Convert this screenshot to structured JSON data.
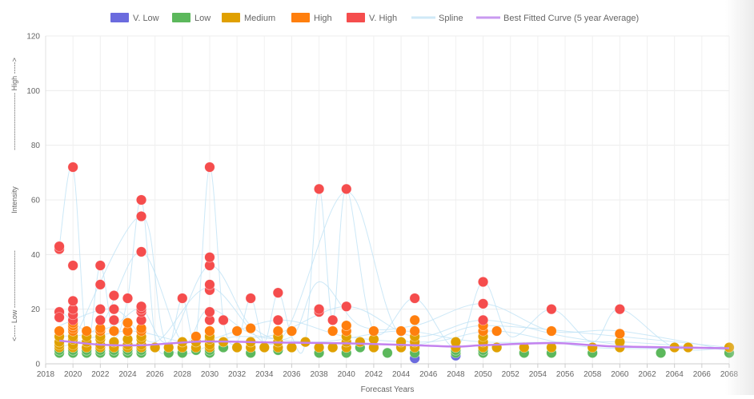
{
  "chart_data": {
    "type": "scatter",
    "xlabel": "Forecast Years",
    "ylabel": "<----- Low ------------------------ Intensity ------------------------ High ----->",
    "ylabel_parts": {
      "low": "<----- Low ------------------------",
      "mid": "Intensity",
      "high": "------------------------ High ----->"
    },
    "xlim": [
      2018,
      2068
    ],
    "ylim": [
      0,
      120
    ],
    "x_ticks": [
      2018,
      2020,
      2022,
      2024,
      2026,
      2028,
      2030,
      2032,
      2034,
      2036,
      2038,
      2040,
      2042,
      2044,
      2046,
      2048,
      2050,
      2052,
      2054,
      2056,
      2058,
      2060,
      2062,
      2064,
      2066,
      2068
    ],
    "y_ticks": [
      0,
      20,
      40,
      60,
      80,
      100,
      120
    ],
    "grid": true,
    "legend_position": "top-center",
    "legend": [
      {
        "label": "V. Low",
        "color": "#6b6bde",
        "kind": "box"
      },
      {
        "label": "Low",
        "color": "#5cb85c",
        "kind": "box"
      },
      {
        "label": "Medium",
        "color": "#e0a000",
        "kind": "box"
      },
      {
        "label": "High",
        "color": "#ff7f0e",
        "kind": "box"
      },
      {
        "label": "V. High",
        "color": "#f54d4d",
        "kind": "box"
      },
      {
        "label": "Spline",
        "color": "#cfe9f7",
        "kind": "line"
      },
      {
        "label": "Best Fitted Curve (5 year Average)",
        "color": "#c99af0",
        "kind": "line"
      }
    ],
    "series": [
      {
        "name": "V. Low",
        "color": "#6b6bde",
        "points": [
          [
            2045,
            2
          ],
          [
            2048,
            3
          ]
        ]
      },
      {
        "name": "Low",
        "color": "#5cb85c",
        "points": [
          [
            2019,
            4
          ],
          [
            2019,
            5
          ],
          [
            2020,
            4
          ],
          [
            2020,
            5
          ],
          [
            2021,
            4
          ],
          [
            2021,
            5
          ],
          [
            2022,
            4
          ],
          [
            2022,
            5
          ],
          [
            2023,
            4
          ],
          [
            2023,
            5
          ],
          [
            2024,
            4
          ],
          [
            2024,
            5
          ],
          [
            2025,
            4
          ],
          [
            2025,
            5
          ],
          [
            2026,
            6
          ],
          [
            2027,
            4
          ],
          [
            2028,
            4
          ],
          [
            2029,
            5
          ],
          [
            2030,
            4
          ],
          [
            2030,
            5
          ],
          [
            2031,
            6
          ],
          [
            2032,
            6
          ],
          [
            2033,
            4
          ],
          [
            2034,
            6
          ],
          [
            2035,
            5
          ],
          [
            2036,
            6
          ],
          [
            2038,
            4
          ],
          [
            2039,
            6
          ],
          [
            2040,
            4
          ],
          [
            2041,
            6
          ],
          [
            2042,
            6
          ],
          [
            2043,
            4
          ],
          [
            2044,
            6
          ],
          [
            2045,
            4
          ],
          [
            2048,
            4
          ],
          [
            2048,
            5
          ],
          [
            2050,
            4
          ],
          [
            2050,
            5
          ],
          [
            2051,
            6
          ],
          [
            2053,
            4
          ],
          [
            2055,
            4
          ],
          [
            2058,
            4
          ],
          [
            2063,
            4
          ],
          [
            2068,
            4
          ]
        ]
      },
      {
        "name": "Medium",
        "color": "#e0a000",
        "points": [
          [
            2019,
            6
          ],
          [
            2019,
            7
          ],
          [
            2019,
            8
          ],
          [
            2019,
            10
          ],
          [
            2020,
            6
          ],
          [
            2020,
            7
          ],
          [
            2020,
            9
          ],
          [
            2020,
            10
          ],
          [
            2021,
            6
          ],
          [
            2021,
            8
          ],
          [
            2021,
            10
          ],
          [
            2022,
            6
          ],
          [
            2022,
            7
          ],
          [
            2022,
            9
          ],
          [
            2022,
            10
          ],
          [
            2023,
            6
          ],
          [
            2023,
            8
          ],
          [
            2024,
            6
          ],
          [
            2024,
            7
          ],
          [
            2024,
            9
          ],
          [
            2025,
            6
          ],
          [
            2025,
            7
          ],
          [
            2025,
            9
          ],
          [
            2025,
            10
          ],
          [
            2026,
            6
          ],
          [
            2027,
            6
          ],
          [
            2028,
            6
          ],
          [
            2028,
            8
          ],
          [
            2029,
            6
          ],
          [
            2029,
            8
          ],
          [
            2029,
            10
          ],
          [
            2030,
            6
          ],
          [
            2030,
            7
          ],
          [
            2030,
            9
          ],
          [
            2030,
            10
          ],
          [
            2031,
            8
          ],
          [
            2032,
            6
          ],
          [
            2033,
            6
          ],
          [
            2033,
            8
          ],
          [
            2034,
            6
          ],
          [
            2035,
            6
          ],
          [
            2035,
            8
          ],
          [
            2035,
            10
          ],
          [
            2036,
            6
          ],
          [
            2037,
            8
          ],
          [
            2038,
            6
          ],
          [
            2039,
            6
          ],
          [
            2040,
            6
          ],
          [
            2040,
            8
          ],
          [
            2040,
            10
          ],
          [
            2041,
            8
          ],
          [
            2042,
            6
          ],
          [
            2042,
            9
          ],
          [
            2044,
            6
          ],
          [
            2044,
            8
          ],
          [
            2045,
            6
          ],
          [
            2045,
            8
          ],
          [
            2045,
            10
          ],
          [
            2048,
            6
          ],
          [
            2048,
            8
          ],
          [
            2050,
            6
          ],
          [
            2050,
            8
          ],
          [
            2050,
            10
          ],
          [
            2051,
            6
          ],
          [
            2053,
            6
          ],
          [
            2055,
            6
          ],
          [
            2058,
            6
          ],
          [
            2060,
            6
          ],
          [
            2060,
            8
          ],
          [
            2064,
            6
          ],
          [
            2065,
            6
          ],
          [
            2068,
            6
          ]
        ]
      },
      {
        "name": "High",
        "color": "#ff7f0e",
        "points": [
          [
            2019,
            12
          ],
          [
            2020,
            12
          ],
          [
            2020,
            13
          ],
          [
            2020,
            14
          ],
          [
            2020,
            15
          ],
          [
            2021,
            12
          ],
          [
            2022,
            12
          ],
          [
            2022,
            13
          ],
          [
            2023,
            12
          ],
          [
            2024,
            12
          ],
          [
            2024,
            15
          ],
          [
            2025,
            12
          ],
          [
            2025,
            13
          ],
          [
            2029,
            10
          ],
          [
            2030,
            12
          ],
          [
            2032,
            12
          ],
          [
            2033,
            13
          ],
          [
            2035,
            12
          ],
          [
            2036,
            12
          ],
          [
            2039,
            12
          ],
          [
            2040,
            12
          ],
          [
            2040,
            14
          ],
          [
            2042,
            12
          ],
          [
            2044,
            12
          ],
          [
            2045,
            12
          ],
          [
            2045,
            16
          ],
          [
            2050,
            12
          ],
          [
            2050,
            14
          ],
          [
            2051,
            12
          ],
          [
            2055,
            12
          ],
          [
            2060,
            11
          ]
        ]
      },
      {
        "name": "V. High",
        "color": "#f54d4d",
        "points": [
          [
            2019,
            19
          ],
          [
            2019,
            17
          ],
          [
            2019,
            42
          ],
          [
            2019,
            43
          ],
          [
            2020,
            16
          ],
          [
            2020,
            18
          ],
          [
            2020,
            20
          ],
          [
            2020,
            23
          ],
          [
            2020,
            36
          ],
          [
            2020,
            72
          ],
          [
            2022,
            16
          ],
          [
            2022,
            20
          ],
          [
            2022,
            29
          ],
          [
            2022,
            36
          ],
          [
            2023,
            16
          ],
          [
            2023,
            20
          ],
          [
            2023,
            25
          ],
          [
            2024,
            24
          ],
          [
            2025,
            16
          ],
          [
            2025,
            19
          ],
          [
            2025,
            20
          ],
          [
            2025,
            21
          ],
          [
            2025,
            41
          ],
          [
            2025,
            54
          ],
          [
            2025,
            60
          ],
          [
            2028,
            24
          ],
          [
            2030,
            16
          ],
          [
            2030,
            19
          ],
          [
            2030,
            27
          ],
          [
            2030,
            29
          ],
          [
            2030,
            36
          ],
          [
            2030,
            39
          ],
          [
            2030,
            72
          ],
          [
            2031,
            16
          ],
          [
            2033,
            24
          ],
          [
            2035,
            16
          ],
          [
            2035,
            26
          ],
          [
            2038,
            19
          ],
          [
            2038,
            20
          ],
          [
            2038,
            64
          ],
          [
            2039,
            16
          ],
          [
            2040,
            21
          ],
          [
            2040,
            64
          ],
          [
            2045,
            24
          ],
          [
            2050,
            16
          ],
          [
            2050,
            22
          ],
          [
            2050,
            30
          ],
          [
            2055,
            20
          ],
          [
            2060,
            20
          ]
        ]
      }
    ],
    "spline_segments": [
      [
        [
          2019,
          43
        ],
        [
          2020,
          72
        ],
        [
          2021,
          8
        ],
        [
          2022,
          36
        ],
        [
          2023,
          10
        ],
        [
          2024,
          24
        ],
        [
          2025,
          60
        ],
        [
          2026,
          10
        ],
        [
          2027,
          6
        ],
        [
          2028,
          24
        ],
        [
          2029,
          10
        ],
        [
          2030,
          72
        ],
        [
          2031,
          16
        ],
        [
          2032,
          8
        ],
        [
          2033,
          24
        ],
        [
          2034,
          8
        ],
        [
          2035,
          26
        ],
        [
          2036,
          10
        ],
        [
          2037,
          8
        ],
        [
          2038,
          64
        ],
        [
          2039,
          16
        ],
        [
          2040,
          64
        ],
        [
          2042,
          12
        ],
        [
          2045,
          24
        ],
        [
          2048,
          6
        ],
        [
          2050,
          30
        ],
        [
          2052,
          10
        ],
        [
          2055,
          20
        ],
        [
          2058,
          8
        ],
        [
          2060,
          20
        ],
        [
          2064,
          6
        ],
        [
          2068,
          6
        ]
      ],
      [
        [
          2019,
          20
        ],
        [
          2021,
          12
        ],
        [
          2023,
          14
        ],
        [
          2025,
          20
        ],
        [
          2027,
          8
        ],
        [
          2030,
          36
        ],
        [
          2033,
          14
        ],
        [
          2036,
          10
        ],
        [
          2038,
          30
        ],
        [
          2041,
          14
        ],
        [
          2045,
          14
        ],
        [
          2050,
          22
        ],
        [
          2055,
          12
        ],
        [
          2060,
          12
        ],
        [
          2068,
          5
        ]
      ],
      [
        [
          2019,
          10
        ],
        [
          2022,
          14
        ],
        [
          2025,
          41
        ],
        [
          2028,
          8
        ],
        [
          2030,
          20
        ],
        [
          2034,
          10
        ],
        [
          2040,
          21
        ],
        [
          2045,
          10
        ],
        [
          2050,
          16
        ],
        [
          2056,
          10
        ],
        [
          2062,
          6
        ],
        [
          2068,
          6
        ]
      ],
      [
        [
          2019,
          6
        ],
        [
          2024,
          12
        ],
        [
          2029,
          8
        ],
        [
          2035,
          16
        ],
        [
          2040,
          10
        ],
        [
          2046,
          8
        ],
        [
          2051,
          12
        ],
        [
          2058,
          6
        ],
        [
          2068,
          6
        ]
      ],
      [
        [
          2020,
          8
        ],
        [
          2025,
          54
        ],
        [
          2027,
          6
        ],
        [
          2032,
          10
        ],
        [
          2038,
          8
        ],
        [
          2044,
          12
        ],
        [
          2050,
          8
        ],
        [
          2060,
          8
        ],
        [
          2068,
          5
        ]
      ],
      [
        [
          2019,
          14
        ],
        [
          2023,
          20
        ],
        [
          2026,
          8
        ],
        [
          2030,
          28
        ],
        [
          2035,
          8
        ],
        [
          2040,
          63
        ],
        [
          2044,
          10
        ],
        [
          2050,
          14
        ],
        [
          2060,
          10
        ],
        [
          2068,
          6
        ]
      ]
    ],
    "best_fit": [
      [
        2019,
        8.5
      ],
      [
        2022,
        7
      ],
      [
        2025,
        6.8
      ],
      [
        2028,
        7.8
      ],
      [
        2030,
        8.2
      ],
      [
        2035,
        7.8
      ],
      [
        2040,
        7.5
      ],
      [
        2045,
        6.8
      ],
      [
        2048,
        6.3
      ],
      [
        2050,
        6.8
      ],
      [
        2055,
        7.6
      ],
      [
        2058,
        6.8
      ],
      [
        2060,
        6.3
      ],
      [
        2064,
        6.0
      ],
      [
        2068,
        5.7
      ]
    ]
  }
}
